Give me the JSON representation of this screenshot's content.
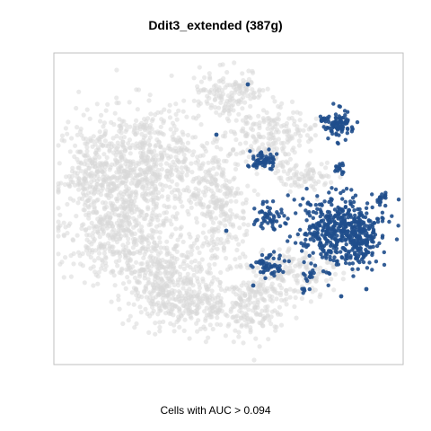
{
  "chart_data": {
    "type": "scatter",
    "title": "Ddit3_extended (387g)",
    "xlabel": "Cells with AUC > 0.094",
    "ylabel": "",
    "grid": false,
    "legend": "none",
    "colors": {
      "background_cells": "#d9d9d9",
      "active_cells": "#1f4e8c",
      "frame": "#bfbfbf"
    },
    "series": [
      {
        "role": "below_threshold",
        "regions": [
          {
            "cx": 165,
            "cy": 175,
            "rx": 62,
            "ry": 52,
            "n": 520
          },
          {
            "cx": 130,
            "cy": 250,
            "rx": 55,
            "ry": 55,
            "n": 460
          },
          {
            "cx": 185,
            "cy": 305,
            "rx": 55,
            "ry": 45,
            "n": 380
          },
          {
            "cx": 240,
            "cy": 225,
            "rx": 30,
            "ry": 55,
            "n": 260
          },
          {
            "cx": 255,
            "cy": 105,
            "rx": 35,
            "ry": 25,
            "n": 150
          },
          {
            "cx": 105,
            "cy": 195,
            "rx": 35,
            "ry": 45,
            "n": 210
          },
          {
            "cx": 300,
            "cy": 150,
            "rx": 45,
            "ry": 30,
            "n": 200
          },
          {
            "cx": 275,
            "cy": 340,
            "rx": 40,
            "ry": 35,
            "n": 220
          },
          {
            "cx": 330,
            "cy": 305,
            "rx": 45,
            "ry": 25,
            "n": 160
          },
          {
            "cx": 210,
            "cy": 340,
            "rx": 40,
            "ry": 25,
            "n": 160
          },
          {
            "cx": 340,
            "cy": 195,
            "rx": 30,
            "ry": 18,
            "n": 90
          }
        ]
      },
      {
        "role": "above_threshold",
        "regions": [
          {
            "cx": 375,
            "cy": 255,
            "rx": 45,
            "ry": 38,
            "n": 420
          },
          {
            "cx": 405,
            "cy": 265,
            "rx": 18,
            "ry": 30,
            "n": 120
          },
          {
            "cx": 375,
            "cy": 138,
            "rx": 18,
            "ry": 16,
            "n": 95
          },
          {
            "cx": 292,
            "cy": 178,
            "rx": 14,
            "ry": 11,
            "n": 60
          },
          {
            "cx": 300,
            "cy": 295,
            "rx": 18,
            "ry": 12,
            "n": 55
          },
          {
            "cx": 300,
            "cy": 240,
            "rx": 16,
            "ry": 14,
            "n": 50
          },
          {
            "cx": 378,
            "cy": 188,
            "rx": 6,
            "ry": 6,
            "n": 14
          },
          {
            "cx": 425,
            "cy": 222,
            "rx": 9,
            "ry": 8,
            "n": 18
          },
          {
            "cx": 345,
            "cy": 308,
            "rx": 8,
            "ry": 6,
            "n": 12
          },
          {
            "cx": 340,
            "cy": 322,
            "rx": 5,
            "ry": 5,
            "n": 6
          }
        ],
        "singles": [
          [
            276,
            94
          ],
          [
            241,
            150
          ],
          [
            252,
            257
          ],
          [
            282,
            318
          ],
          [
            380,
            330
          ],
          [
            408,
            322
          ]
        ]
      }
    ]
  }
}
